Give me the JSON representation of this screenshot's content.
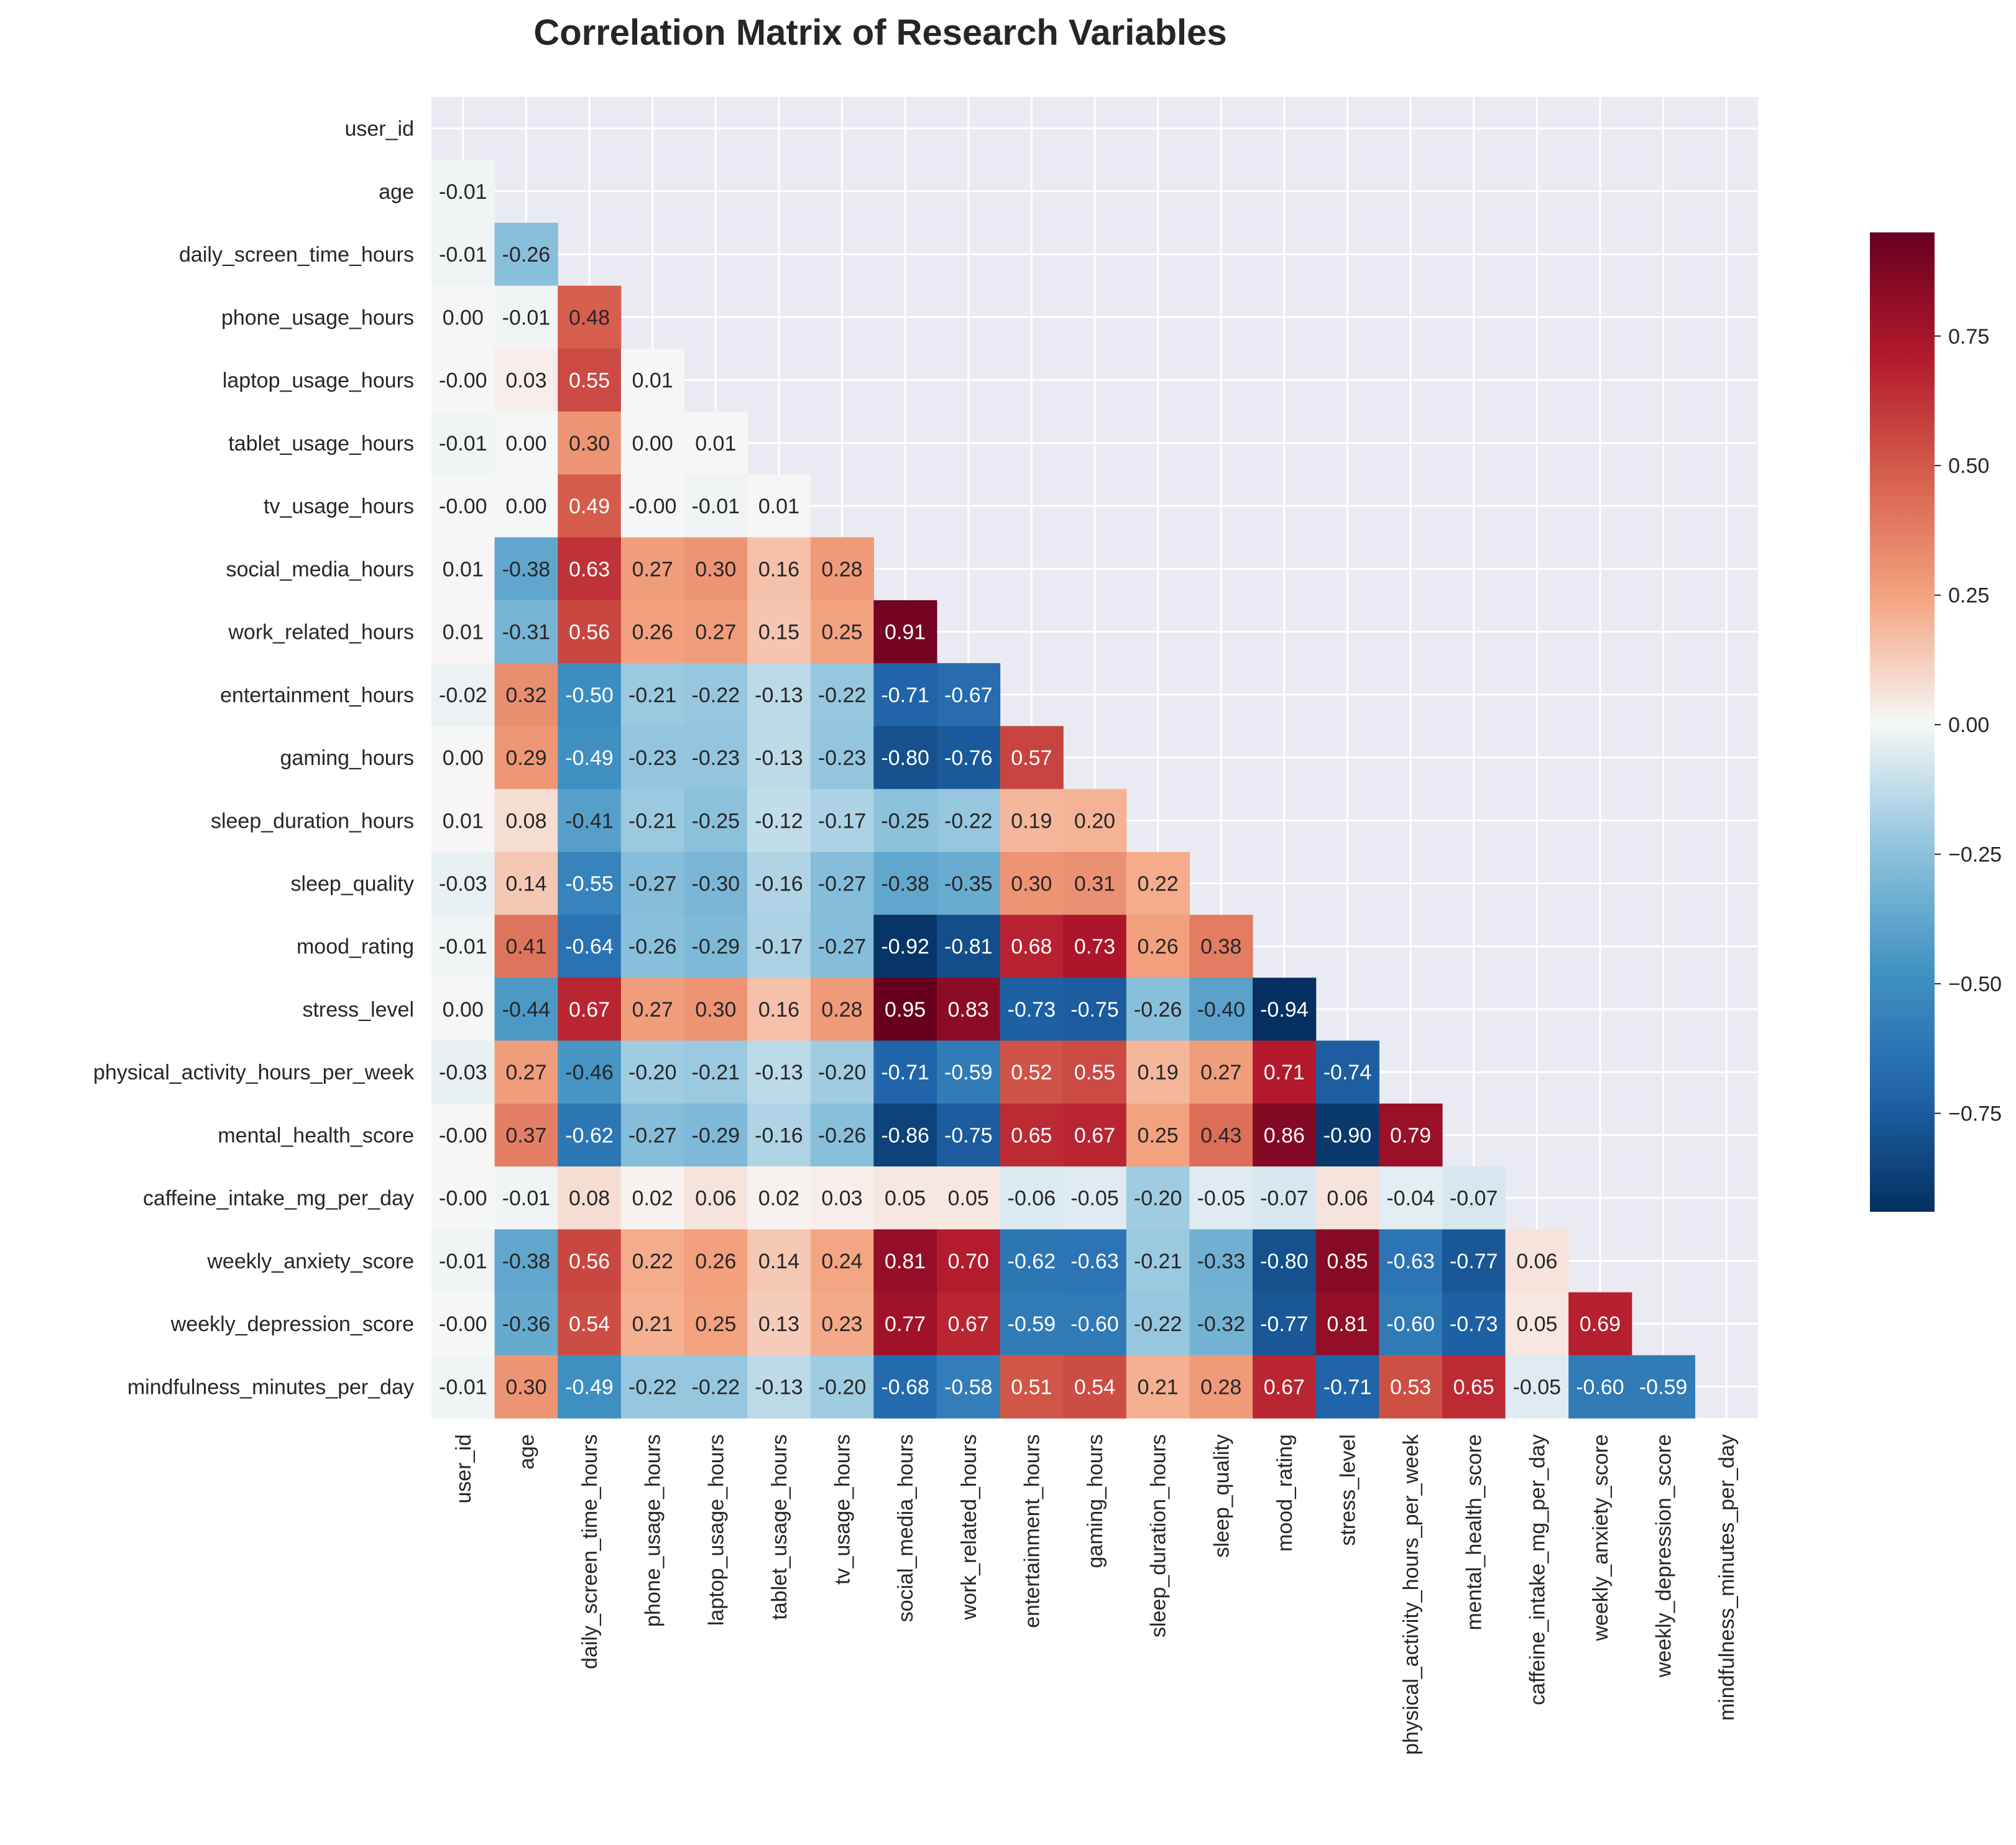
{
  "chart_data": {
    "type": "heatmap",
    "title": "Correlation Matrix of Research Variables",
    "variables": [
      "user_id",
      "age",
      "daily_screen_time_hours",
      "phone_usage_hours",
      "laptop_usage_hours",
      "tablet_usage_hours",
      "tv_usage_hours",
      "social_media_hours",
      "work_related_hours",
      "entertainment_hours",
      "gaming_hours",
      "sleep_duration_hours",
      "sleep_quality",
      "mood_rating",
      "stress_level",
      "physical_activity_hours_per_week",
      "mental_health_score",
      "caffeine_intake_mg_per_day",
      "weekly_anxiety_score",
      "weekly_depression_score",
      "mindfulness_minutes_per_day"
    ],
    "labels": [
      [],
      [
        "-0.01"
      ],
      [
        "-0.01",
        "-0.26"
      ],
      [
        "0.00",
        "-0.01",
        "0.48"
      ],
      [
        "-0.00",
        "0.03",
        "0.55",
        "0.01"
      ],
      [
        "-0.01",
        "0.00",
        "0.30",
        "0.00",
        "0.01"
      ],
      [
        "-0.00",
        "0.00",
        "0.49",
        "-0.00",
        "-0.01",
        "0.01"
      ],
      [
        "0.01",
        "-0.38",
        "0.63",
        "0.27",
        "0.30",
        "0.16",
        "0.28"
      ],
      [
        "0.01",
        "-0.31",
        "0.56",
        "0.26",
        "0.27",
        "0.15",
        "0.25",
        "0.91"
      ],
      [
        "-0.02",
        "0.32",
        "-0.50",
        "-0.21",
        "-0.22",
        "-0.13",
        "-0.22",
        "-0.71",
        "-0.67"
      ],
      [
        "0.00",
        "0.29",
        "-0.49",
        "-0.23",
        "-0.23",
        "-0.13",
        "-0.23",
        "-0.80",
        "-0.76",
        "0.57"
      ],
      [
        "0.01",
        "0.08",
        "-0.41",
        "-0.21",
        "-0.25",
        "-0.12",
        "-0.17",
        "-0.25",
        "-0.22",
        "0.19",
        "0.20"
      ],
      [
        "-0.03",
        "0.14",
        "-0.55",
        "-0.27",
        "-0.30",
        "-0.16",
        "-0.27",
        "-0.38",
        "-0.35",
        "0.30",
        "0.31",
        "0.22"
      ],
      [
        "-0.01",
        "0.41",
        "-0.64",
        "-0.26",
        "-0.29",
        "-0.17",
        "-0.27",
        "-0.92",
        "-0.81",
        "0.68",
        "0.73",
        "0.26",
        "0.38"
      ],
      [
        "0.00",
        "-0.44",
        "0.67",
        "0.27",
        "0.30",
        "0.16",
        "0.28",
        "0.95",
        "0.83",
        "-0.73",
        "-0.75",
        "-0.26",
        "-0.40",
        "-0.94"
      ],
      [
        "-0.03",
        "0.27",
        "-0.46",
        "-0.20",
        "-0.21",
        "-0.13",
        "-0.20",
        "-0.71",
        "-0.59",
        "0.52",
        "0.55",
        "0.19",
        "0.27",
        "0.71",
        "-0.74"
      ],
      [
        "-0.00",
        "0.37",
        "-0.62",
        "-0.27",
        "-0.29",
        "-0.16",
        "-0.26",
        "-0.86",
        "-0.75",
        "0.65",
        "0.67",
        "0.25",
        "0.43",
        "0.86",
        "-0.90",
        "0.79"
      ],
      [
        "-0.00",
        "-0.01",
        "0.08",
        "0.02",
        "0.06",
        "0.02",
        "0.03",
        "0.05",
        "0.05",
        "-0.06",
        "-0.05",
        "-0.20",
        "-0.05",
        "-0.07",
        "0.06",
        "-0.04",
        "-0.07"
      ],
      [
        "-0.01",
        "-0.38",
        "0.56",
        "0.22",
        "0.26",
        "0.14",
        "0.24",
        "0.81",
        "0.70",
        "-0.62",
        "-0.63",
        "-0.21",
        "-0.33",
        "-0.80",
        "0.85",
        "-0.63",
        "-0.77",
        "0.06"
      ],
      [
        "-0.00",
        "-0.36",
        "0.54",
        "0.21",
        "0.25",
        "0.13",
        "0.23",
        "0.77",
        "0.67",
        "-0.59",
        "-0.60",
        "-0.22",
        "-0.32",
        "-0.77",
        "0.81",
        "-0.60",
        "-0.73",
        "0.05",
        "0.69"
      ],
      [
        "-0.01",
        "0.30",
        "-0.49",
        "-0.22",
        "-0.22",
        "-0.13",
        "-0.20",
        "-0.68",
        "-0.58",
        "0.51",
        "0.54",
        "0.21",
        "0.28",
        "0.67",
        "-0.71",
        "0.53",
        "0.65",
        "-0.05",
        "-0.60",
        "-0.59"
      ]
    ],
    "mask": "upper-triangle-including-diagonal",
    "colormap": "RdBu_r",
    "vmin": -0.94,
    "vmax": 0.95,
    "colorbar_ticks": [
      "0.75",
      "0.50",
      "0.25",
      "0.00",
      "−0.25",
      "−0.50",
      "−0.75"
    ],
    "colorbar_tick_values": [
      0.75,
      0.5,
      0.25,
      0.0,
      -0.25,
      -0.5,
      -0.75
    ],
    "grid": true,
    "legend": "colorbar-right"
  }
}
